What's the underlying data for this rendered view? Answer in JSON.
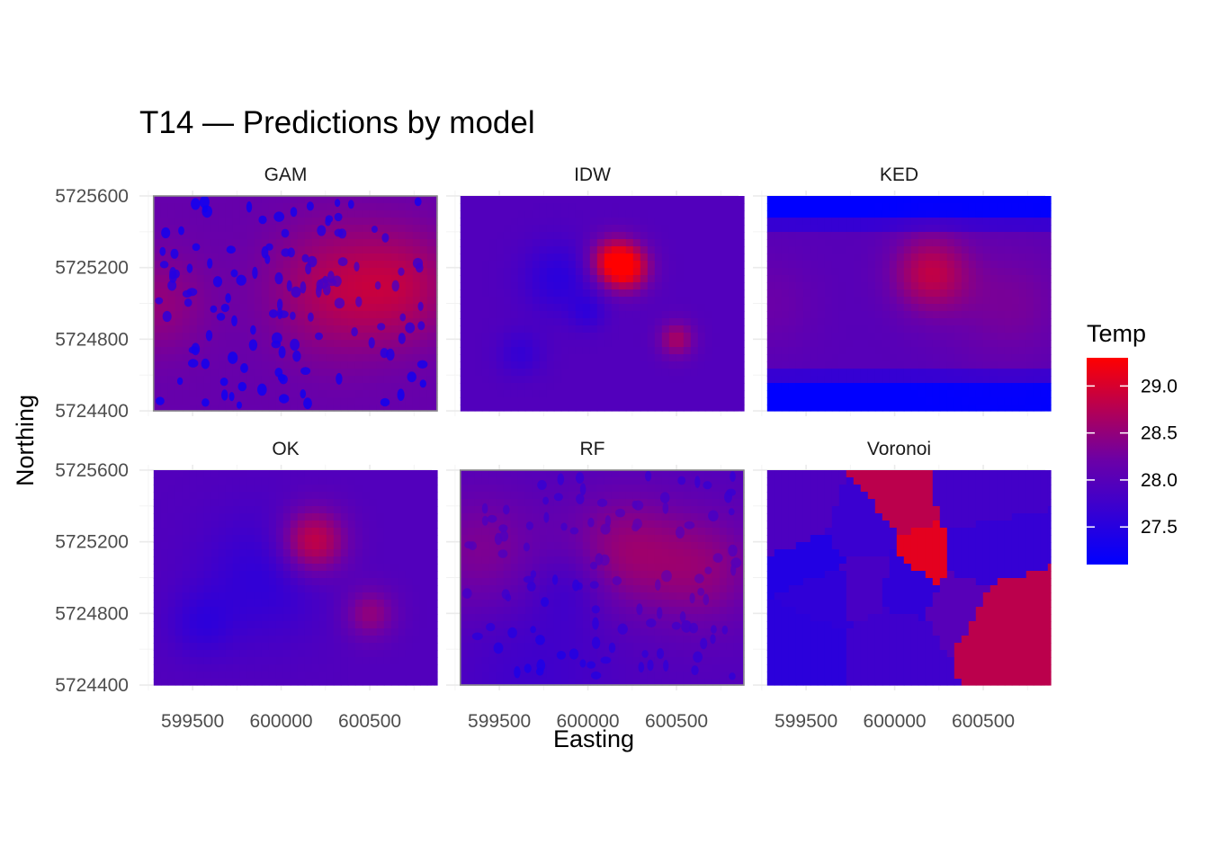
{
  "chart_data": {
    "type": "heatmap",
    "title": "T14 — Predictions by model",
    "xlabel": "Easting",
    "ylabel": "Northing",
    "xlim": [
      599200,
      600850
    ],
    "ylim": [
      5724370,
      5725630
    ],
    "x_ticks": [
      599500,
      600000,
      600500
    ],
    "y_ticks": [
      5724400,
      5724800,
      5725200,
      5725600
    ],
    "x_tick_labels": [
      "599500",
      "600000",
      "600500"
    ],
    "y_tick_labels": [
      "5724400",
      "5724800",
      "5725200",
      "5725600"
    ],
    "grid": true,
    "legend": {
      "title": "Temp",
      "placement": "right",
      "type": "colorbar",
      "range": [
        27.1,
        29.3
      ],
      "ticks": [
        27.5,
        28.0,
        28.5,
        29.0
      ],
      "tick_labels": [
        "27.5",
        "28.0",
        "28.5",
        "29.0"
      ],
      "low_color": "#0000ff",
      "mid_color": "#6a00a8",
      "high_color": "#ff0000"
    },
    "data_extent": {
      "x": [
        599280,
        600880
      ],
      "y": [
        5724400,
        5725600
      ]
    },
    "panels": [
      {
        "name": "GAM",
        "label": "GAM",
        "base": 28.15,
        "pattern": "dots",
        "border": true,
        "hotspots": [
          {
            "x": 599300,
            "y": 5725000,
            "v": 0.35,
            "r": 200
          },
          {
            "x": 600300,
            "y": 5725080,
            "v": 0.55,
            "r": 260
          },
          {
            "x": 600700,
            "y": 5725100,
            "v": 0.5,
            "r": 220
          }
        ]
      },
      {
        "name": "IDW",
        "label": "IDW",
        "base": 27.95,
        "pattern": "smooth",
        "border": false,
        "hotspots": [
          {
            "x": 600220,
            "y": 5725200,
            "v": 1.2,
            "r": 90
          },
          {
            "x": 600130,
            "y": 5725240,
            "v": 0.9,
            "r": 90
          },
          {
            "x": 600500,
            "y": 5724800,
            "v": 0.7,
            "r": 70
          },
          {
            "x": 599830,
            "y": 5725140,
            "v": -0.4,
            "r": 140
          },
          {
            "x": 600000,
            "y": 5724950,
            "v": -0.3,
            "r": 70
          },
          {
            "x": 599620,
            "y": 5724720,
            "v": -0.3,
            "r": 90
          }
        ]
      },
      {
        "name": "KED",
        "label": "KED",
        "base": 28.0,
        "pattern": "stripes",
        "border": false,
        "hotspots": [
          {
            "x": 600200,
            "y": 5725170,
            "v": 0.8,
            "r": 150
          },
          {
            "x": 600650,
            "y": 5725000,
            "v": 0.3,
            "r": 250
          },
          {
            "x": 599300,
            "y": 5725000,
            "v": 0.2,
            "r": 180
          }
        ]
      },
      {
        "name": "OK",
        "label": "OK",
        "base": 27.95,
        "pattern": "smooth",
        "border": false,
        "hotspots": [
          {
            "x": 600180,
            "y": 5725200,
            "v": 1.0,
            "r": 130
          },
          {
            "x": 600500,
            "y": 5724800,
            "v": 0.55,
            "r": 100
          },
          {
            "x": 599900,
            "y": 5725000,
            "v": -0.35,
            "r": 250
          },
          {
            "x": 599550,
            "y": 5724740,
            "v": -0.3,
            "r": 130
          }
        ]
      },
      {
        "name": "RF",
        "label": "RF",
        "base": 27.95,
        "pattern": "dots",
        "border": true,
        "hotspots": [
          {
            "x": 599400,
            "y": 5725150,
            "v": 0.4,
            "r": 250
          },
          {
            "x": 600200,
            "y": 5725150,
            "v": 0.55,
            "r": 230
          },
          {
            "x": 600650,
            "y": 5725050,
            "v": 0.5,
            "r": 230
          },
          {
            "x": 599900,
            "y": 5724950,
            "v": -0.25,
            "r": 150
          },
          {
            "x": 599700,
            "y": 5724500,
            "v": -0.2,
            "r": 300
          }
        ]
      },
      {
        "name": "Voronoi",
        "label": "Voronoi",
        "base": 27.8,
        "pattern": "voronoi",
        "border": false,
        "hotspots": [],
        "seeds": [
          {
            "x": 600080,
            "y": 5725440,
            "v": 28.8
          },
          {
            "x": 600170,
            "y": 5725100,
            "v": 29.1
          },
          {
            "x": 600550,
            "y": 5724780,
            "v": 28.8
          },
          {
            "x": 600380,
            "y": 5725460,
            "v": 27.8
          },
          {
            "x": 600450,
            "y": 5725120,
            "v": 27.65
          },
          {
            "x": 600380,
            "y": 5724870,
            "v": 28.0
          },
          {
            "x": 599450,
            "y": 5725350,
            "v": 27.9
          },
          {
            "x": 599800,
            "y": 5725220,
            "v": 27.7
          },
          {
            "x": 599610,
            "y": 5724960,
            "v": 27.6
          },
          {
            "x": 599820,
            "y": 5724990,
            "v": 27.85
          },
          {
            "x": 600080,
            "y": 5724980,
            "v": 27.6
          },
          {
            "x": 599560,
            "y": 5725070,
            "v": 27.45
          },
          {
            "x": 599450,
            "y": 5724600,
            "v": 27.55
          },
          {
            "x": 600000,
            "y": 5724620,
            "v": 27.75
          }
        ]
      }
    ]
  }
}
